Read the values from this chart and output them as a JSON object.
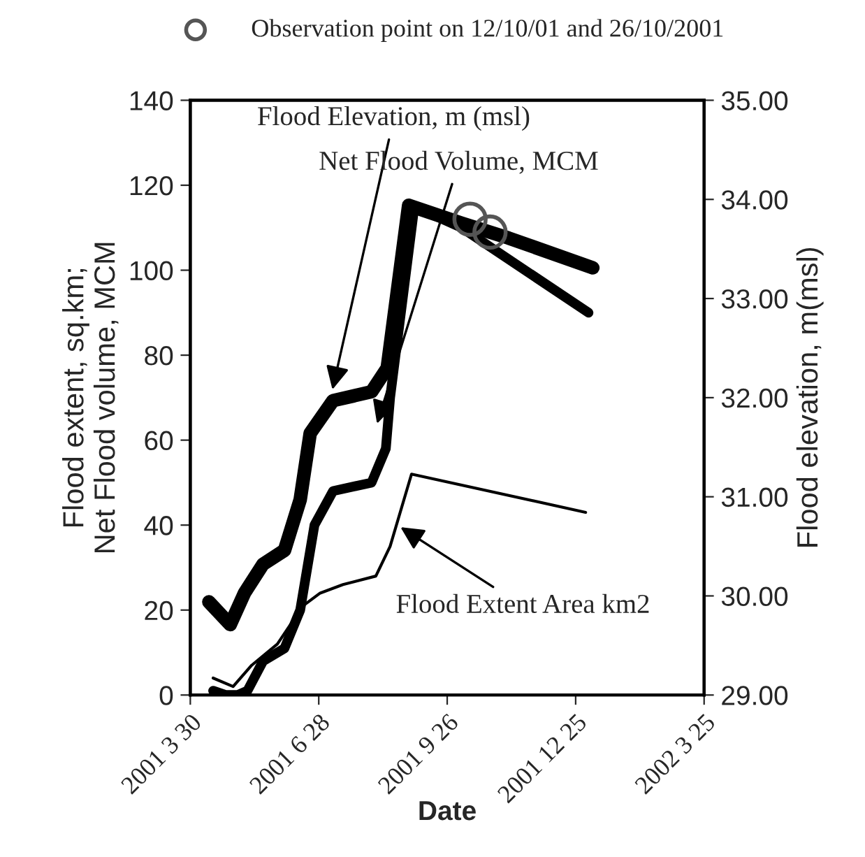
{
  "chart_data": {
    "type": "line",
    "xlabel": "Date",
    "ylabel": "Flood extent, sq.km;\nNet Flood volume, MCM",
    "y2label": "Flood elevation, m(msl)",
    "xlim": [
      "2001-03-30",
      "2002-03-25"
    ],
    "xticks": [
      {
        "value": "2001-03-30",
        "label": "2001 3 30"
      },
      {
        "value": "2001-06-28",
        "label": "2001 6 28"
      },
      {
        "value": "2001-09-26",
        "label": "2001 9 26"
      },
      {
        "value": "2001-12-25",
        "label": "2001 12 25"
      },
      {
        "value": "2002-03-25",
        "label": "2002 3 25"
      }
    ],
    "ylim": [
      0,
      140
    ],
    "yticks": [
      0,
      20,
      40,
      60,
      80,
      100,
      120,
      140
    ],
    "y2lim": [
      29,
      35
    ],
    "y2ticks": [
      {
        "value": 29,
        "label": "29.00"
      },
      {
        "value": 30,
        "label": "30.00"
      },
      {
        "value": 31,
        "label": "31.00"
      },
      {
        "value": 32,
        "label": "32.00"
      },
      {
        "value": 33,
        "label": "33.00"
      },
      {
        "value": 34,
        "label": "34.00"
      },
      {
        "value": 35,
        "label": "35.00"
      }
    ],
    "grid": false,
    "legend": "top",
    "series": [
      {
        "color": "#000000",
        "axis": "y2",
        "x": [
          "2001-04-12",
          "2001-04-27",
          "2001-05-07",
          "2001-05-20",
          "2001-06-04",
          "2001-06-15",
          "2001-06-22",
          "2001-07-08",
          "2001-08-04",
          "2001-08-15",
          "2001-08-30",
          "2001-10-06",
          "2001-11-08",
          "2002-01-06"
        ],
        "values": [
          29.94,
          29.71,
          30.03,
          30.32,
          30.46,
          30.97,
          31.64,
          31.97,
          32.06,
          32.3,
          33.94,
          33.76,
          33.61,
          33.31
        ]
      },
      {
        "color": "#000000",
        "x": [
          "2001-04-15",
          "2001-04-24",
          "2001-05-02",
          "2001-05-09",
          "2001-05-20",
          "2001-06-04",
          "2001-06-15",
          "2001-06-25",
          "2001-07-08",
          "2001-08-04",
          "2001-08-14",
          "2001-08-17",
          "2001-09-03",
          "2001-10-06",
          "2002-01-03"
        ],
        "values": [
          1,
          0,
          0,
          1,
          8,
          11,
          20,
          40,
          48,
          50,
          58,
          70,
          115,
          110,
          90
        ]
      },
      {
        "color": "#000000",
        "x": [
          "2001-04-15",
          "2001-04-29",
          "2001-05-12",
          "2001-05-30",
          "2001-06-17",
          "2001-06-29",
          "2001-07-15",
          "2001-08-07",
          "2001-08-17",
          "2001-09-01",
          "2002-01-01"
        ],
        "values": [
          4,
          2,
          7,
          12,
          21,
          24,
          26,
          28,
          35,
          52,
          43
        ]
      },
      {
        "type": "scatter",
        "name": "Observation point on 12/10/01 and 26/10/2001",
        "color": "#555555",
        "axis": "y2",
        "marker": "circle",
        "x": [
          "2001-10-12",
          "2001-10-26"
        ],
        "values": [
          33.8,
          33.67
        ]
      }
    ],
    "annotations": [
      {
        "text": "Flood Elevation, m (msl)",
        "x": "2001-07-07",
        "y": 71
      },
      {
        "text": "Net Flood Volume, MCM",
        "x": "2001-08-07",
        "y": 63
      },
      {
        "text": "Flood Extent Area km2",
        "x": "2001-08-22",
        "y": 40
      }
    ]
  }
}
